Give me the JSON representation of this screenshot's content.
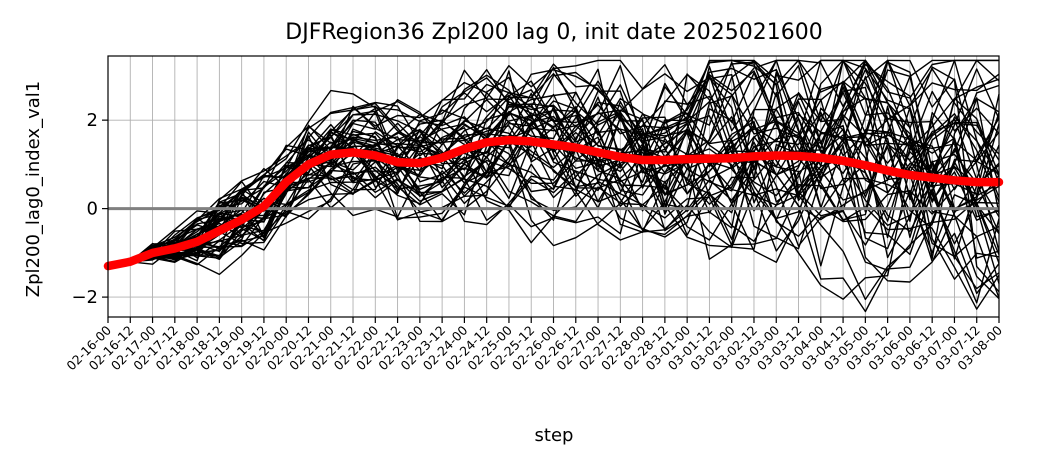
{
  "chart_data": {
    "type": "line",
    "title": "DJFRegion36 Zpl200 lag 0, init date 2025021600",
    "xlabel": "step",
    "ylabel": "Zpl200_lag0_index_val1",
    "categories": [
      "02-16-00",
      "02-16-12",
      "02-17-00",
      "02-17-12",
      "02-18-00",
      "02-18-12",
      "02-19-00",
      "02-19-12",
      "02-20-00",
      "02-20-12",
      "02-21-00",
      "02-21-12",
      "02-22-00",
      "02-22-12",
      "02-23-00",
      "02-23-12",
      "02-24-00",
      "02-24-12",
      "02-25-00",
      "02-25-12",
      "02-26-00",
      "02-26-12",
      "02-27-00",
      "02-27-12",
      "02-28-00",
      "02-28-12",
      "03-01-00",
      "03-01-12",
      "03-02-00",
      "03-02-12",
      "03-03-00",
      "03-03-12",
      "03-04-00",
      "03-04-12",
      "03-05-00",
      "03-05-12",
      "03-06-00",
      "03-06-12",
      "03-07-00",
      "03-07-12",
      "03-08-00"
    ],
    "ylim": [
      -2.45,
      3.45
    ],
    "yticks": [
      -2,
      0,
      2
    ],
    "grid": true,
    "zero_line": true,
    "ensemble_members": 50,
    "ensemble_color": "#000000",
    "mean_color": "#ff0000",
    "zero_line_color": "#808080",
    "series": [
      {
        "values": [
          -1.3,
          -1.2,
          -1.0,
          -0.9,
          -0.75,
          -0.5,
          -0.25,
          0.05,
          0.6,
          1.0,
          1.22,
          1.27,
          1.2,
          1.05,
          1.03,
          1.15,
          1.35,
          1.5,
          1.55,
          1.52,
          1.45,
          1.38,
          1.27,
          1.17,
          1.1,
          1.1,
          1.12,
          1.13,
          1.14,
          1.18,
          1.2,
          1.19,
          1.15,
          1.08,
          0.98,
          0.86,
          0.76,
          0.7,
          0.64,
          0.6,
          0.6
        ]
      }
    ]
  }
}
